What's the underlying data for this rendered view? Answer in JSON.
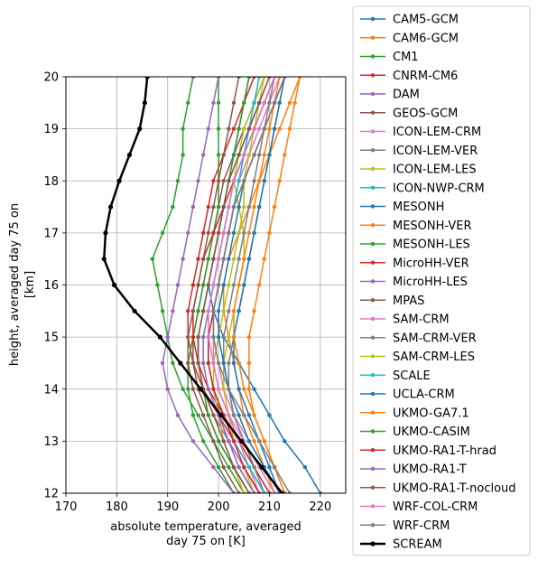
{
  "chart_data": {
    "type": "line",
    "title": "",
    "xlabel": "absolute temperature, averaged day 75 on [K]",
    "xlabel_lines": [
      "absolute temperature, averaged",
      "day 75 on [K]"
    ],
    "ylabel": "height, averaged day 75 on [km]",
    "ylabel_lines": [
      "height, averaged day 75 on",
      "[km]"
    ],
    "xlim": [
      170,
      225
    ],
    "ylim": [
      12,
      20
    ],
    "xticks": [
      170,
      180,
      190,
      200,
      210,
      220
    ],
    "yticks": [
      12,
      13,
      14,
      15,
      16,
      17,
      18,
      19,
      20
    ],
    "grid": true,
    "legend_position": "right-outside",
    "y_levels": [
      12,
      12.5,
      13,
      13.5,
      14,
      14.5,
      15,
      15.5,
      16,
      16.5,
      17,
      17.5,
      18,
      18.5,
      19,
      19.5,
      20
    ],
    "series": [
      {
        "name": "CAM5-GCM",
        "color": "#1f77b4",
        "values": [
          220,
          217,
          213,
          210,
          207,
          204,
          201,
          199,
          198,
          199,
          200,
          201,
          202,
          203,
          204,
          205,
          206
        ],
        "width": 1.5
      },
      {
        "name": "CAM6-GCM",
        "color": "#ff7f0e",
        "values": [
          211,
          209,
          207,
          205,
          204,
          203,
          202,
          201,
          201,
          202,
          204,
          206,
          208,
          210,
          212,
          214,
          216
        ],
        "width": 1.5
      },
      {
        "name": "CM1",
        "color": "#2ca02c",
        "values": [
          205,
          202,
          199,
          196,
          193,
          191,
          190,
          189,
          188,
          187,
          189,
          191,
          192,
          193,
          193,
          194,
          195
        ],
        "width": 1.5
      },
      {
        "name": "CNRM-CM6",
        "color": "#d62728",
        "values": [
          209,
          206,
          203,
          200,
          197,
          195,
          194,
          194,
          195,
          196,
          197,
          198,
          199,
          201,
          203,
          205,
          207
        ],
        "width": 1.5
      },
      {
        "name": "DAM",
        "color": "#9467bd",
        "values": [
          208,
          205,
          202,
          199,
          197,
          196,
          196,
          197,
          198,
          199,
          200,
          201,
          202,
          204,
          206,
          208,
          210
        ],
        "width": 1.5
      },
      {
        "name": "GEOS-GCM",
        "color": "#8c564b",
        "values": [
          206,
          203,
          200,
          198,
          196,
          195,
          195,
          196,
          197,
          198,
          199,
          200,
          201,
          203,
          205,
          207,
          209
        ],
        "width": 1.5
      },
      {
        "name": "ICON-LEM-CRM",
        "color": "#e377c2",
        "values": [
          212,
          209,
          206,
          203,
          201,
          200,
          199,
          199,
          200,
          201,
          202,
          203,
          204,
          206,
          208,
          210,
          212
        ],
        "width": 1.5
      },
      {
        "name": "ICON-LEM-VER",
        "color": "#7f7f7f",
        "values": [
          210,
          207,
          205,
          203,
          202,
          202,
          203,
          204,
          205,
          206,
          207,
          208,
          209,
          210,
          211,
          212,
          213
        ],
        "width": 1.5
      },
      {
        "name": "ICON-LEM-LES",
        "color": "#bcbd22",
        "values": [
          207,
          205,
          203,
          202,
          201,
          201,
          202,
          203,
          204,
          205,
          205,
          204,
          203,
          204,
          205,
          207,
          209
        ],
        "width": 1.5
      },
      {
        "name": "ICON-NWP-CRM",
        "color": "#17becf",
        "values": [
          207,
          204,
          202,
          200,
          199,
          198,
          198,
          198,
          199,
          200,
          201,
          202,
          203,
          205,
          207,
          209,
          211
        ],
        "width": 1.5
      },
      {
        "name": "MESONH",
        "color": "#1f77b4",
        "values": [
          212,
          210,
          208,
          206,
          204,
          203,
          203,
          204,
          205,
          206,
          207,
          208,
          209,
          210,
          211,
          212,
          213
        ],
        "width": 1.5
      },
      {
        "name": "MESONH-VER",
        "color": "#ff7f0e",
        "values": [
          213,
          211,
          209,
          207,
          206,
          206,
          206,
          207,
          208,
          209,
          210,
          211,
          212,
          213,
          214,
          215,
          216
        ],
        "width": 1.5
      },
      {
        "name": "MESONH-LES",
        "color": "#2ca02c",
        "values": [
          203,
          200,
          197,
          195,
          194,
          194,
          195,
          196,
          197,
          198,
          199,
          200,
          200,
          200,
          200,
          200,
          200
        ],
        "width": 1.5
      },
      {
        "name": "MicroHH-VER",
        "color": "#d62728",
        "values": [
          210,
          207,
          204,
          201,
          198,
          196,
          195,
          195,
          196,
          197,
          199,
          201,
          203,
          205,
          207,
          209,
          211
        ],
        "width": 1.5
      },
      {
        "name": "MicroHH-LES",
        "color": "#9467bd",
        "values": [
          203,
          199,
          195,
          192,
          190,
          189,
          190,
          191,
          192,
          193,
          194,
          195,
          196,
          197,
          198,
          199,
          200
        ],
        "width": 1.5
      },
      {
        "name": "MPAS",
        "color": "#8c564b",
        "values": [
          204,
          201,
          199,
          197,
          195,
          194,
          194,
          195,
          196,
          197,
          198,
          199,
          200,
          201,
          202,
          203,
          204
        ],
        "width": 1.5
      },
      {
        "name": "SAM-CRM",
        "color": "#e377c2",
        "values": [
          208,
          206,
          204,
          202,
          200,
          199,
          199,
          199,
          200,
          201,
          202,
          203,
          204,
          205,
          206,
          207,
          208
        ],
        "width": 1.5
      },
      {
        "name": "SAM-CRM-VER",
        "color": "#7f7f7f",
        "values": [
          209,
          207,
          205,
          203,
          202,
          201,
          201,
          202,
          203,
          204,
          205,
          206,
          207,
          208,
          209,
          210,
          211
        ],
        "width": 1.5
      },
      {
        "name": "SAM-CRM-LES",
        "color": "#bcbd22",
        "values": [
          205,
          203,
          201,
          200,
          199,
          199,
          200,
          201,
          202,
          203,
          204,
          205,
          205,
          206,
          207,
          208,
          209
        ],
        "width": 1.5
      },
      {
        "name": "SCALE",
        "color": "#17becf",
        "values": [
          209,
          206,
          203,
          201,
          199,
          198,
          198,
          199,
          200,
          201,
          202,
          203,
          204,
          205,
          206,
          207,
          208
        ],
        "width": 1.5
      },
      {
        "name": "UCLA-CRM",
        "color": "#1f77b4",
        "values": [
          212,
          209,
          206,
          204,
          202,
          201,
          200,
          200,
          201,
          202,
          203,
          204,
          205,
          207,
          209,
          211,
          213
        ],
        "width": 1.5
      },
      {
        "name": "UKMO-GA7.1",
        "color": "#ff7f0e",
        "values": [
          213,
          211,
          209,
          207,
          205,
          204,
          203,
          203,
          204,
          205,
          206,
          207,
          208,
          209,
          210,
          211,
          212
        ],
        "width": 1.5
      },
      {
        "name": "UKMO-CASIM",
        "color": "#2ca02c",
        "values": [
          206,
          203,
          200,
          198,
          197,
          196,
          196,
          197,
          198,
          199,
          200,
          201,
          202,
          203,
          204,
          205,
          206
        ],
        "width": 1.5
      },
      {
        "name": "UKMO-RA1-T-hrad",
        "color": "#d62728",
        "values": [
          208,
          205,
          203,
          201,
          199,
          198,
          198,
          199,
          200,
          201,
          202,
          203,
          205,
          207,
          209,
          211,
          213
        ],
        "width": 1.5
      },
      {
        "name": "UKMO-RA1-T",
        "color": "#9467bd",
        "values": [
          207,
          204,
          202,
          200,
          198,
          197,
          197,
          198,
          199,
          200,
          201,
          202,
          203,
          205,
          207,
          209,
          211
        ],
        "width": 1.5
      },
      {
        "name": "UKMO-RA1-T-nocloud",
        "color": "#8c564b",
        "values": [
          206,
          203,
          201,
          199,
          197,
          196,
          196,
          197,
          198,
          199,
          200,
          201,
          202,
          204,
          206,
          208,
          210
        ],
        "width": 1.5
      },
      {
        "name": "WRF-COL-CRM",
        "color": "#e377c2",
        "values": [
          211,
          208,
          205,
          202,
          200,
          199,
          198,
          198,
          199,
          200,
          201,
          202,
          203,
          205,
          207,
          209,
          211
        ],
        "width": 1.5
      },
      {
        "name": "WRF-CRM",
        "color": "#7f7f7f",
        "values": [
          214,
          211,
          208,
          205,
          202,
          200,
          199,
          199,
          200,
          201,
          202,
          203,
          205,
          207,
          209,
          211,
          213
        ],
        "width": 1.5
      },
      {
        "name": "SCREAM",
        "color": "#000000",
        "values": [
          212.5,
          208.5,
          204.5,
          200.5,
          196.5,
          192.5,
          188.5,
          183.5,
          179.5,
          177.5,
          177.8,
          178.8,
          180.5,
          182.5,
          184.5,
          185.5,
          186
        ],
        "width": 2.5
      }
    ]
  }
}
